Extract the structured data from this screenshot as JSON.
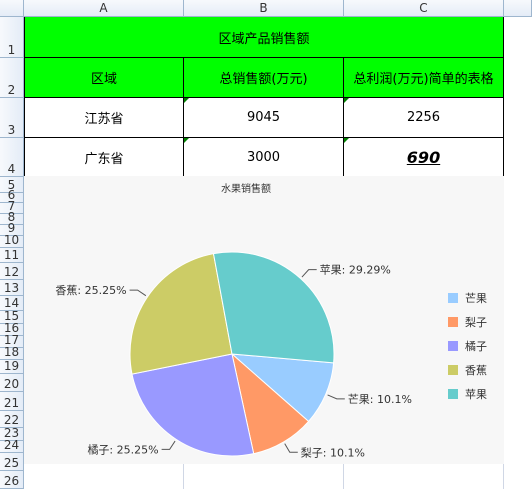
{
  "columns": [
    "A",
    "B",
    "C"
  ],
  "rows": [
    "1",
    "2",
    "3",
    "4",
    "5",
    "6",
    "7",
    "8",
    "9",
    "10",
    "11",
    "12",
    "13",
    "14",
    "15",
    "16",
    "17",
    "18",
    "19",
    "20",
    "21",
    "22",
    "23",
    "24",
    "25",
    "26"
  ],
  "table": {
    "title": "区域产品销售额",
    "headers": [
      "区域",
      "总销售额(万元)",
      "总利润(万元)简单的表格"
    ],
    "data": [
      [
        "江苏省",
        "9045",
        "2256"
      ],
      [
        "广东省",
        "3000",
        "690"
      ]
    ]
  },
  "colors": {
    "header_fill": "#00ff00",
    "chart_bg": "#f7f7f7"
  },
  "chart_data": {
    "type": "pie",
    "title": "水果销售额",
    "categories": [
      "芒果",
      "梨子",
      "橘子",
      "香蕉",
      "苹果"
    ],
    "values": [
      10.1,
      10.1,
      25.25,
      25.25,
      29.29
    ],
    "labels": [
      "芒果: 10.1%",
      "梨子: 10.1%",
      "橘子: 25.25%",
      "香蕉: 25.25%",
      "苹果: 29.29%"
    ],
    "colors": [
      "#99ccff",
      "#ff9966",
      "#9999ff",
      "#cccc66",
      "#66cccc"
    ],
    "legend_position": "right"
  }
}
